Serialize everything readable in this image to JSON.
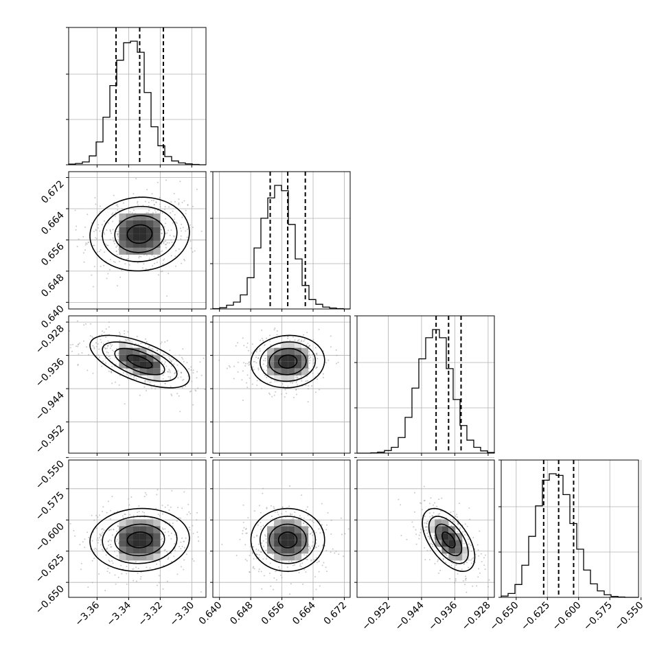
{
  "chart_data": {
    "type": "corner",
    "title": "",
    "grid": true,
    "parameters": [
      {
        "index": 0,
        "label": "",
        "median": -3.333,
        "q16": -3.348,
        "q84": -3.318,
        "range": [
          -3.378,
          -3.291
        ],
        "ticks": [
          -3.36,
          -3.34,
          -3.32,
          -3.3
        ],
        "tick_labels": [
          "−3.36",
          "−3.34",
          "−3.32",
          "−3.30"
        ]
      },
      {
        "index": 1,
        "label": "",
        "median": 0.6575,
        "q16": 0.653,
        "q84": 0.662,
        "range": [
          0.6383,
          0.6735
        ],
        "ticks": [
          0.64,
          0.648,
          0.656,
          0.664,
          0.672
        ],
        "tick_labels": [
          "0.640",
          "0.648",
          "0.656",
          "0.664",
          "0.672"
        ]
      },
      {
        "index": 2,
        "label": "",
        "median": -0.9375,
        "q16": -0.9405,
        "q84": -0.9345,
        "range": [
          -0.9595,
          -0.9265
        ],
        "ticks": [
          -0.952,
          -0.944,
          -0.936,
          -0.928
        ],
        "tick_labels": [
          "−0.952",
          "−0.944",
          "−0.936",
          "−0.928"
        ]
      },
      {
        "index": 3,
        "label": "",
        "median": -0.616,
        "q16": -0.628,
        "q84": -0.604,
        "range": [
          -0.662,
          -0.552
        ],
        "ticks": [
          -0.65,
          -0.625,
          -0.6,
          -0.575,
          -0.55
        ],
        "tick_labels": [
          "−0.650",
          "−0.625",
          "−0.600",
          "−0.575",
          "−0.550"
        ]
      }
    ],
    "histograms": [
      {
        "param": 0,
        "counts": [
          2,
          4,
          9,
          28,
          72,
          150,
          250,
          330,
          385,
          390,
          355,
          228,
          120,
          60,
          26,
          12,
          6,
          3,
          1,
          0
        ]
      },
      {
        "param": 1,
        "counts": [
          1,
          4,
          12,
          22,
          45,
          100,
          195,
          290,
          355,
          395,
          378,
          270,
          160,
          75,
          30,
          15,
          6,
          3,
          1,
          0
        ]
      },
      {
        "param": 2,
        "counts": [
          0,
          0,
          1,
          3,
          8,
          18,
          48,
          110,
          200,
          290,
          355,
          380,
          355,
          260,
          165,
          85,
          40,
          18,
          7,
          2
        ]
      },
      {
        "param": 3,
        "counts": [
          4,
          12,
          40,
          100,
          190,
          285,
          365,
          385,
          380,
          320,
          230,
          150,
          85,
          42,
          20,
          8,
          3,
          1,
          0,
          0
        ]
      }
    ],
    "correlations": [
      {
        "x": 0,
        "y": 1,
        "rho": 0.05
      },
      {
        "x": 0,
        "y": 2,
        "rho": -0.62
      },
      {
        "x": 1,
        "y": 2,
        "rho": 0.05
      },
      {
        "x": 0,
        "y": 3,
        "rho": 0.05
      },
      {
        "x": 1,
        "y": 3,
        "rho": 0.0
      },
      {
        "x": 2,
        "y": 3,
        "rho": -0.55
      }
    ],
    "contour_levels_sigma": [
      0.5,
      1.0,
      1.5,
      2.0
    ],
    "histogram_y_ticks": [
      0.0,
      0.33,
      0.66,
      1.0
    ],
    "n_scatter_points": 420
  }
}
